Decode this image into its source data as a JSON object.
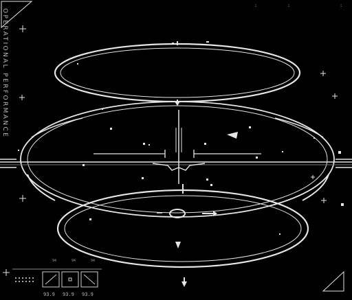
{
  "panel": {
    "title": "OPERATIONAL PERFORMANCE",
    "top_dots": [
      ":",
      ":",
      ":"
    ],
    "tiny_labels": [
      "94",
      "94",
      "94"
    ],
    "readouts": [
      "93.9",
      "93.9",
      "93.9"
    ],
    "boxes": [
      "box-1",
      "box-2",
      "box-3"
    ]
  },
  "colors": {
    "background": "#000000",
    "lines": "#e6e6e6",
    "dim": "#888888"
  }
}
